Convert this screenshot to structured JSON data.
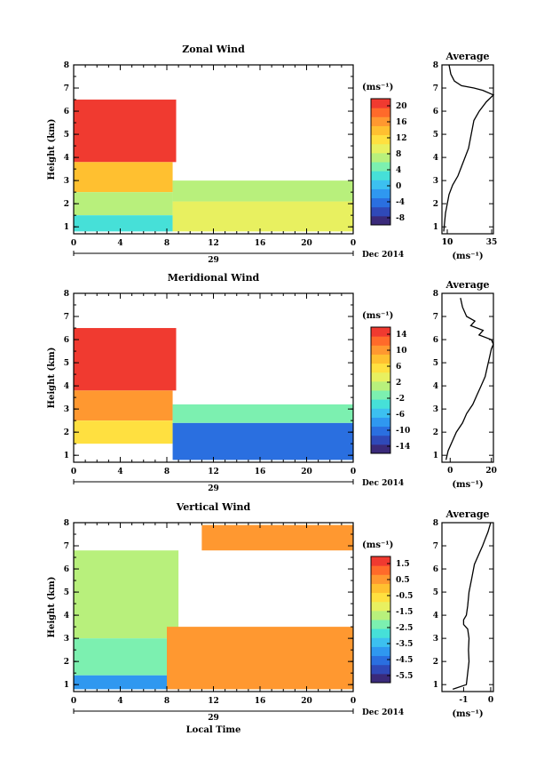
{
  "colors": {
    "scale": [
      "#3a2a7a",
      "#2f49b8",
      "#2a6fe0",
      "#2f98f0",
      "#3cc0f0",
      "#46e0d8",
      "#7cf0b0",
      "#b8f07c",
      "#e8f060",
      "#ffe040",
      "#ffc030",
      "#ff9830",
      "#ff6a2a",
      "#f03a30"
    ]
  },
  "panels": [
    {
      "id": "zonal",
      "title": "Zonal Wind",
      "ylabel": "Height (km)",
      "unit": "(ms⁻¹)",
      "colorbar_ticks": [
        "20",
        "16",
        "12",
        "8",
        "4",
        "0",
        "-4",
        "-8"
      ],
      "avg_title": "Average",
      "avg_xlabel": "(ms⁻¹)",
      "avg_xticks": [
        "10",
        "10",
        "35"
      ],
      "day_label": "29",
      "month_label": "Dec 2014"
    },
    {
      "id": "meridional",
      "title": "Meridional Wind",
      "ylabel": "Height (km)",
      "unit": "(ms⁻¹)",
      "colorbar_ticks": [
        "14",
        "10",
        "6",
        "2",
        "-2",
        "-6",
        "-10",
        "-14"
      ],
      "avg_title": "Average",
      "avg_xlabel": "(ms⁻¹)",
      "avg_xticks": [
        "0",
        "20"
      ],
      "day_label": "29",
      "month_label": "Dec 2014"
    },
    {
      "id": "vertical",
      "title": "Vertical Wind",
      "ylabel": "Height (km)",
      "unit": "(ms⁻¹)",
      "colorbar_ticks": [
        "1.5",
        "0.5",
        "-0.5",
        "-1.5",
        "-2.5",
        "-3.5",
        "-4.5",
        "-5.5"
      ],
      "avg_title": "Average",
      "avg_xlabel": "(ms⁻¹)",
      "avg_xticks": [
        "-1",
        "0"
      ],
      "day_label": "29",
      "month_label": "Dec 2014",
      "xlabel": "Local Time"
    }
  ],
  "chart_data": [
    {
      "type": "heatmap",
      "title": "Zonal Wind",
      "ylabel": "Height (km)",
      "x_ticks": [
        "0",
        "4",
        "8",
        "12",
        "16",
        "20",
        "0"
      ],
      "y_ticks": [
        "1",
        "2",
        "3",
        "4",
        "5",
        "6",
        "7",
        "8"
      ],
      "ylim": [
        0.7,
        8
      ],
      "xlim": [
        0,
        24
      ],
      "colorbar_range": [
        -10,
        22
      ],
      "regions": [
        {
          "x0": 0,
          "x1": 8.8,
          "y0": 3.8,
          "y1": 6.5,
          "value": 21
        },
        {
          "x0": 0,
          "x1": 8.5,
          "y0": 2.5,
          "y1": 3.8,
          "value": 13
        },
        {
          "x0": 0,
          "x1": 8.5,
          "y0": 1.5,
          "y1": 2.5,
          "value": 7
        },
        {
          "x0": 0,
          "x1": 8.5,
          "y0": 0.8,
          "y1": 1.5,
          "value": 3
        },
        {
          "x0": 8.5,
          "x1": 24,
          "y0": 0.8,
          "y1": 2.1,
          "value": 9
        },
        {
          "x0": 8.5,
          "x1": 24,
          "y0": 2.1,
          "y1": 3.0,
          "value": 7
        }
      ]
    },
    {
      "type": "line",
      "title": "Average",
      "xlabel": "(ms⁻¹)",
      "xlim": [
        7,
        36
      ],
      "ylim": [
        0.7,
        8
      ],
      "x": [
        8,
        8.5,
        9,
        10,
        11,
        13,
        16,
        18,
        20,
        22,
        23,
        24,
        25,
        28,
        32,
        36,
        30,
        25,
        18,
        14,
        12,
        11
      ],
      "y": [
        0.8,
        1.2,
        1.6,
        2.0,
        2.4,
        2.8,
        3.2,
        3.6,
        4.0,
        4.4,
        4.8,
        5.2,
        5.6,
        6.0,
        6.4,
        6.7,
        6.9,
        7.0,
        7.1,
        7.3,
        7.6,
        8.0
      ]
    },
    {
      "type": "heatmap",
      "title": "Meridional Wind",
      "ylabel": "Height (km)",
      "x_ticks": [
        "0",
        "4",
        "8",
        "12",
        "16",
        "20",
        "0"
      ],
      "y_ticks": [
        "1",
        "2",
        "3",
        "4",
        "5",
        "6",
        "7",
        "8"
      ],
      "ylim": [
        0.7,
        8
      ],
      "xlim": [
        0,
        24
      ],
      "colorbar_range": [
        -16,
        16
      ],
      "regions": [
        {
          "x0": 0,
          "x1": 8.8,
          "y0": 3.8,
          "y1": 6.5,
          "value": 15
        },
        {
          "x0": 0,
          "x1": 8.5,
          "y0": 2.5,
          "y1": 3.8,
          "value": 10
        },
        {
          "x0": 0,
          "x1": 8.5,
          "y0": 1.5,
          "y1": 2.5,
          "value": 5
        },
        {
          "x0": 8.5,
          "x1": 24,
          "y0": 0.8,
          "y1": 2.4,
          "value": -10
        },
        {
          "x0": 8.5,
          "x1": 24,
          "y0": 2.4,
          "y1": 3.2,
          "value": -2
        }
      ]
    },
    {
      "type": "line",
      "title": "Average",
      "xlabel": "(ms⁻¹)",
      "xlim": [
        -4,
        21
      ],
      "ylim": [
        0.7,
        8
      ],
      "x": [
        -2,
        -1,
        1,
        3,
        6,
        8,
        11,
        13,
        15,
        17,
        18,
        19,
        20,
        21,
        20,
        14,
        16,
        10,
        12,
        8,
        6,
        5
      ],
      "y": [
        0.8,
        1.2,
        1.6,
        2.0,
        2.4,
        2.8,
        3.2,
        3.6,
        4.0,
        4.4,
        4.8,
        5.2,
        5.6,
        5.8,
        6.0,
        6.2,
        6.4,
        6.6,
        6.8,
        7.0,
        7.4,
        7.8
      ]
    },
    {
      "type": "heatmap",
      "title": "Vertical Wind",
      "ylabel": "Height (km)",
      "xlabel": "Local Time",
      "x_ticks": [
        "0",
        "4",
        "8",
        "12",
        "16",
        "20",
        "0"
      ],
      "y_ticks": [
        "1",
        "2",
        "3",
        "4",
        "5",
        "6",
        "7",
        "8"
      ],
      "ylim": [
        0.7,
        8
      ],
      "xlim": [
        0,
        24
      ],
      "colorbar_range": [
        -6,
        2
      ],
      "regions": [
        {
          "x0": 0,
          "x1": 9,
          "y0": 3.0,
          "y1": 6.8,
          "value": -1.5
        },
        {
          "x0": 0,
          "x1": 9,
          "y0": 1.4,
          "y1": 3.0,
          "value": -2.3
        },
        {
          "x0": 0,
          "x1": 9,
          "y0": 0.8,
          "y1": 1.4,
          "value": -3.8
        },
        {
          "x0": 8,
          "x1": 24,
          "y0": 0.8,
          "y1": 3.5,
          "value": 0.3
        },
        {
          "x0": 11,
          "x1": 24,
          "y0": 6.8,
          "y1": 7.9,
          "value": 0.5
        }
      ]
    },
    {
      "type": "line",
      "title": "Average",
      "xlabel": "(ms⁻¹)",
      "xlim": [
        -1.8,
        0.1
      ],
      "ylim": [
        0.7,
        8
      ],
      "x": [
        -1.4,
        -0.9,
        -0.85,
        -0.8,
        -0.82,
        -0.8,
        -0.85,
        -1.0,
        -1.0,
        -0.9,
        -0.85,
        -0.8,
        -0.7,
        -0.6,
        -0.45,
        -0.3,
        -0.2,
        -0.1,
        -0.05,
        0.0
      ],
      "y": [
        0.8,
        1.0,
        1.5,
        2.0,
        2.5,
        3.0,
        3.4,
        3.6,
        3.8,
        4.0,
        4.4,
        5.0,
        5.6,
        6.2,
        6.6,
        7.0,
        7.3,
        7.6,
        7.8,
        8.0
      ]
    }
  ]
}
